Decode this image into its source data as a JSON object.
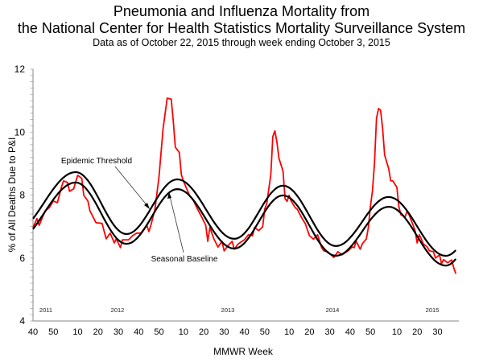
{
  "title": "Pneumonia and Influenza Mortality from",
  "subtitle": "the National Center for Health Statistics Mortality Surveillance System",
  "caption": "Data as of October 22, 2015 through  week ending October 3, 2015",
  "chart_data": {
    "type": "line",
    "title": "Pneumonia and Influenza Mortality from the National Center for Health Statistics Mortality Surveillance System",
    "xlabel": "MMWR Week",
    "ylabel": "% of All Deaths Due to P&I",
    "ylim": [
      4,
      12
    ],
    "yticks": [
      "4",
      "6",
      "8",
      "10",
      "12"
    ],
    "xrange": [
      "2011-40",
      "2015-39"
    ],
    "xticks": [
      {
        "week": "2011-40",
        "label": "40"
      },
      {
        "week": "2011-50",
        "label": "50"
      },
      {
        "week": "2012-10",
        "label": "10"
      },
      {
        "week": "2012-20",
        "label": "20"
      },
      {
        "week": "2012-30",
        "label": "30"
      },
      {
        "week": "2012-40",
        "label": "40"
      },
      {
        "week": "2012-50",
        "label": "50"
      },
      {
        "week": "2013-10",
        "label": "10"
      },
      {
        "week": "2013-20",
        "label": "20"
      },
      {
        "week": "2013-30",
        "label": "30"
      },
      {
        "week": "2013-40",
        "label": "40"
      },
      {
        "week": "2013-50",
        "label": "50"
      },
      {
        "week": "2014-10",
        "label": "10"
      },
      {
        "week": "2014-20",
        "label": "20"
      },
      {
        "week": "2014-30",
        "label": "30"
      },
      {
        "week": "2014-40",
        "label": "40"
      },
      {
        "week": "2014-50",
        "label": "50"
      },
      {
        "week": "2015-10",
        "label": "10"
      },
      {
        "week": "2015-20",
        "label": "20"
      },
      {
        "week": "2015-30",
        "label": "30"
      }
    ],
    "year_labels": [
      "2011",
      "2012",
      "2013",
      "2014",
      "2015"
    ],
    "grid": false,
    "legend": "none",
    "annotations": [
      {
        "text": "Epidemic Threshold",
        "target": "Epidemic Threshold"
      },
      {
        "text": "Seasonal Baseline",
        "target": "Seasonal Baseline"
      }
    ],
    "colors": {
      "pi_mortality": "#ff0000",
      "threshold": "#000000",
      "baseline": "#000000"
    },
    "series": [
      {
        "key": "pi_mortality",
        "points": [
          [
            "2011-40",
            6.97
          ],
          [
            "2011-42",
            7.25
          ],
          [
            "2011-43",
            7.04
          ],
          [
            "2011-46",
            7.5
          ],
          [
            "2011-48",
            7.6
          ],
          [
            "2011-50",
            7.81
          ],
          [
            "2011-52",
            7.76
          ],
          [
            "2012-02",
            8.25
          ],
          [
            "2012-03",
            8.45
          ],
          [
            "2012-05",
            8.4
          ],
          [
            "2012-06",
            8.12
          ],
          [
            "2012-08",
            8.2
          ],
          [
            "2012-10",
            8.63
          ],
          [
            "2012-12",
            8.53
          ],
          [
            "2012-13",
            7.99
          ],
          [
            "2012-15",
            7.81
          ],
          [
            "2012-16",
            7.5
          ],
          [
            "2012-19",
            7.12
          ],
          [
            "2012-22",
            7.1
          ],
          [
            "2012-24",
            6.61
          ],
          [
            "2012-26",
            6.79
          ],
          [
            "2012-28",
            6.48
          ],
          [
            "2012-29",
            6.61
          ],
          [
            "2012-31",
            6.33
          ],
          [
            "2012-32",
            6.58
          ],
          [
            "2012-35",
            6.58
          ],
          [
            "2012-37",
            6.71
          ],
          [
            "2012-39",
            6.79
          ],
          [
            "2012-41",
            6.79
          ],
          [
            "2012-44",
            7.04
          ],
          [
            "2012-45",
            6.84
          ],
          [
            "2012-46",
            7.04
          ],
          [
            "2012-48",
            7.55
          ],
          [
            "2012-50",
            8.58
          ],
          [
            "2012-52",
            10.11
          ],
          [
            "2013-02",
            11.08
          ],
          [
            "2013-04",
            11.05
          ],
          [
            "2013-05",
            10.37
          ],
          [
            "2013-06",
            9.52
          ],
          [
            "2013-08",
            9.35
          ],
          [
            "2013-09",
            8.65
          ],
          [
            "2013-10",
            8.45
          ],
          [
            "2013-12",
            8.14
          ],
          [
            "2013-13",
            7.99
          ],
          [
            "2013-15",
            7.81
          ],
          [
            "2013-17",
            7.55
          ],
          [
            "2013-19",
            7.3
          ],
          [
            "2013-21",
            7.04
          ],
          [
            "2013-22",
            6.53
          ],
          [
            "2013-23",
            6.97
          ],
          [
            "2013-25",
            6.61
          ],
          [
            "2013-27",
            6.35
          ],
          [
            "2013-29",
            6.53
          ],
          [
            "2013-30",
            6.23
          ],
          [
            "2013-32",
            6.4
          ],
          [
            "2013-34",
            6.53
          ],
          [
            "2013-35",
            6.28
          ],
          [
            "2013-37",
            6.45
          ],
          [
            "2013-40",
            6.58
          ],
          [
            "2013-42",
            6.74
          ],
          [
            "2013-44",
            6.71
          ],
          [
            "2013-45",
            6.97
          ],
          [
            "2013-47",
            6.87
          ],
          [
            "2013-49",
            6.99
          ],
          [
            "2013-50",
            7.55
          ],
          [
            "2013-51",
            7.73
          ],
          [
            "2014-01",
            8.65
          ],
          [
            "2014-02",
            9.86
          ],
          [
            "2014-03",
            10.04
          ],
          [
            "2014-04",
            9.68
          ],
          [
            "2014-05",
            9.17
          ],
          [
            "2014-07",
            8.76
          ],
          [
            "2014-08",
            7.89
          ],
          [
            "2014-09",
            7.8
          ],
          [
            "2014-10",
            7.99
          ],
          [
            "2014-11",
            7.81
          ],
          [
            "2014-13",
            7.6
          ],
          [
            "2014-14",
            7.55
          ],
          [
            "2014-16",
            7.3
          ],
          [
            "2014-18",
            7.09
          ],
          [
            "2014-20",
            6.71
          ],
          [
            "2014-22",
            6.6
          ],
          [
            "2014-24",
            6.74
          ],
          [
            "2014-26",
            6.33
          ],
          [
            "2014-27",
            6.23
          ],
          [
            "2014-29",
            6.2
          ],
          [
            "2014-32",
            6.02
          ],
          [
            "2014-34",
            6.2
          ],
          [
            "2014-36",
            6.1
          ],
          [
            "2014-39",
            6.23
          ],
          [
            "2014-41",
            6.35
          ],
          [
            "2014-42",
            6.33
          ],
          [
            "2014-43",
            6.53
          ],
          [
            "2014-45",
            6.28
          ],
          [
            "2014-46",
            6.45
          ],
          [
            "2014-48",
            6.61
          ],
          [
            "2014-49",
            6.97
          ],
          [
            "2014-50",
            7.63
          ],
          [
            "2014-51",
            8.14
          ],
          [
            "2014-52",
            9.01
          ],
          [
            "2014-53",
            10.44
          ],
          [
            "2015-01",
            10.75
          ],
          [
            "2015-02",
            10.7
          ],
          [
            "2015-03",
            10.11
          ],
          [
            "2015-04",
            9.27
          ],
          [
            "2015-06",
            8.83
          ],
          [
            "2015-07",
            8.45
          ],
          [
            "2015-08",
            8.45
          ],
          [
            "2015-10",
            8.25
          ],
          [
            "2015-11",
            7.63
          ],
          [
            "2015-12",
            7.38
          ],
          [
            "2015-14",
            7.3
          ],
          [
            "2015-15",
            7.48
          ],
          [
            "2015-16",
            7.38
          ],
          [
            "2015-18",
            7.04
          ],
          [
            "2015-19",
            6.86
          ],
          [
            "2015-20",
            6.48
          ],
          [
            "2015-21",
            6.74
          ],
          [
            "2015-22",
            6.61
          ],
          [
            "2015-23",
            6.45
          ],
          [
            "2015-25",
            6.35
          ],
          [
            "2015-26",
            6.23
          ],
          [
            "2015-28",
            6.2
          ],
          [
            "2015-29",
            6.0
          ],
          [
            "2015-31",
            6.1
          ],
          [
            "2015-32",
            5.82
          ],
          [
            "2015-33",
            5.95
          ],
          [
            "2015-35",
            5.85
          ],
          [
            "2015-37",
            5.94
          ],
          [
            "2015-38",
            5.69
          ],
          [
            "2015-39",
            5.5
          ]
        ]
      },
      {
        "key": "threshold",
        "name": "Epidemic Threshold",
        "points": [
          [
            "2011-40",
            7.25
          ],
          [
            "2012-09",
            8.73
          ],
          [
            "2012-34",
            6.76
          ],
          [
            "2013-07",
            8.5
          ],
          [
            "2013-35",
            6.61
          ],
          [
            "2014-07",
            8.3
          ],
          [
            "2014-33",
            6.38
          ],
          [
            "2015-06",
            7.94
          ],
          [
            "2015-34",
            6.07
          ],
          [
            "2015-39",
            6.25
          ]
        ]
      },
      {
        "key": "baseline",
        "name": "Seasonal Baseline",
        "points": [
          [
            "2011-40",
            6.92
          ],
          [
            "2012-09",
            8.4
          ],
          [
            "2012-34",
            6.45
          ],
          [
            "2013-07",
            8.19
          ],
          [
            "2013-35",
            6.3
          ],
          [
            "2014-07",
            7.99
          ],
          [
            "2014-33",
            6.07
          ],
          [
            "2015-06",
            7.63
          ],
          [
            "2015-34",
            5.76
          ],
          [
            "2015-39",
            5.97
          ]
        ]
      }
    ]
  }
}
